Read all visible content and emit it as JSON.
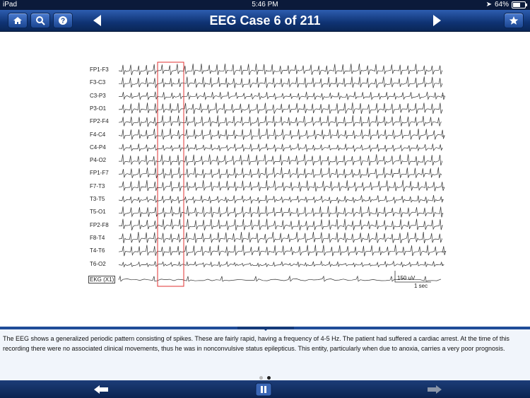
{
  "status_bar": {
    "device": "iPad",
    "time": "5:46 PM",
    "battery": "64%",
    "battery_level": 0.64
  },
  "nav": {
    "title": "EEG Case 6 of 211",
    "home_icon": "home-icon",
    "search_icon": "search-icon",
    "help_icon": "help-icon",
    "prev_icon": "left-triangle-icon",
    "next_icon": "right-triangle-icon",
    "favorite_icon": "star-icon"
  },
  "eeg": {
    "channels": [
      "FP1-F3",
      "F3-C3",
      "C3-P3",
      "P3-O1",
      "FP2-F4",
      "F4-C4",
      "C4-P4",
      "P4-O2",
      "FP1-F7",
      "F7-T3",
      "T3-T5",
      "T5-O1",
      "FP2-F8",
      "F8-T4",
      "T4-T6",
      "T6-O2"
    ],
    "ekg_label": "EKG (X1)",
    "scale_amplitude": "150 uV",
    "scale_time": "1 sec"
  },
  "description": {
    "text": "The EEG shows a generalized periodic pattern consisting of spikes. These are fairly rapid, having a frequency of 4-5 Hz. The patient had suffered a cardiac arrest. At the time of this recording there were no associated clinical movements, thus he was in nonconvulsive status epilepticus. This entity, particularly when due to anoxia, carries a very poor prognosis."
  },
  "pagination": {
    "pages": 2,
    "current": 2
  },
  "toolbar": {
    "back_icon": "back-arrow-icon",
    "pause_icon": "pause-icon",
    "forward_icon": "forward-arrow-icon",
    "forward_disabled": true
  }
}
